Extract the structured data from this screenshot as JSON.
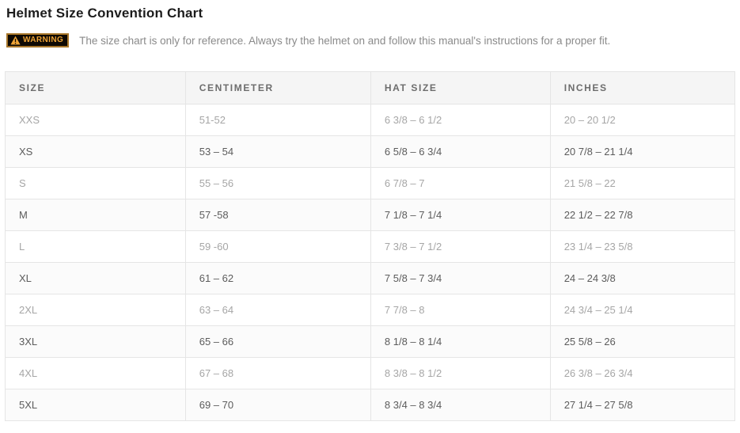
{
  "page": {
    "title": "Helmet Size Convention Chart"
  },
  "warning": {
    "badge_label": "WARNING",
    "icon": "warning-triangle-icon",
    "text": "The size chart is only for reference. Always try the helmet on and follow this manual's instructions for a proper fit."
  },
  "table": {
    "columns": [
      "SIZE",
      "CENTIMETER",
      "HAT SIZE",
      "INCHES"
    ],
    "column_widths_pct": [
      24.7,
      25.4,
      24.6,
      25.3
    ],
    "rows": [
      [
        "XXS",
        "51-52",
        "6 3/8 – 6 1/2",
        "20 – 20 1/2"
      ],
      [
        "XS",
        "53 – 54",
        "6 5/8 – 6 3/4",
        "20 7/8 – 21 1/4"
      ],
      [
        "S",
        "55 – 56",
        "6 7/8 – 7",
        "21 5/8 – 22"
      ],
      [
        "M",
        "57 -58",
        "7 1/8 – 7 1/4",
        "22 1/2 – 22 7/8"
      ],
      [
        "L",
        "59 -60",
        "7 3/8 – 7 1/2",
        "23 1/4 – 23 5/8"
      ],
      [
        "XL",
        "61 – 62",
        "7 5/8 – 7 3/4",
        "24 – 24 3/8"
      ],
      [
        "2XL",
        "63 – 64",
        "7 7/8 – 8",
        "24 3/4 – 25 1/4"
      ],
      [
        "3XL",
        "65 – 66",
        "8 1/8 – 8 1/4",
        "25 5/8 – 26"
      ],
      [
        "4XL",
        "67 – 68",
        "8 3/8 – 8 1/2",
        "26 3/8 – 26 3/4"
      ],
      [
        "5XL",
        "69 – 70",
        "8 3/4 – 8 3/4",
        "27 1/4 – 27 5/8"
      ]
    ]
  },
  "colors": {
    "accent_orange": "#efa436",
    "badge_background": "#0e0903",
    "badge_border": "#a8762a",
    "header_background": "#f5f5f5",
    "header_text": "#6d6d6d",
    "row_light_text": "#a6a6a6",
    "row_dark_text": "#5c5c5c",
    "table_border": "#e5e5e5",
    "warning_text": "#8a8a8a",
    "title_text": "#1c1c1c"
  }
}
